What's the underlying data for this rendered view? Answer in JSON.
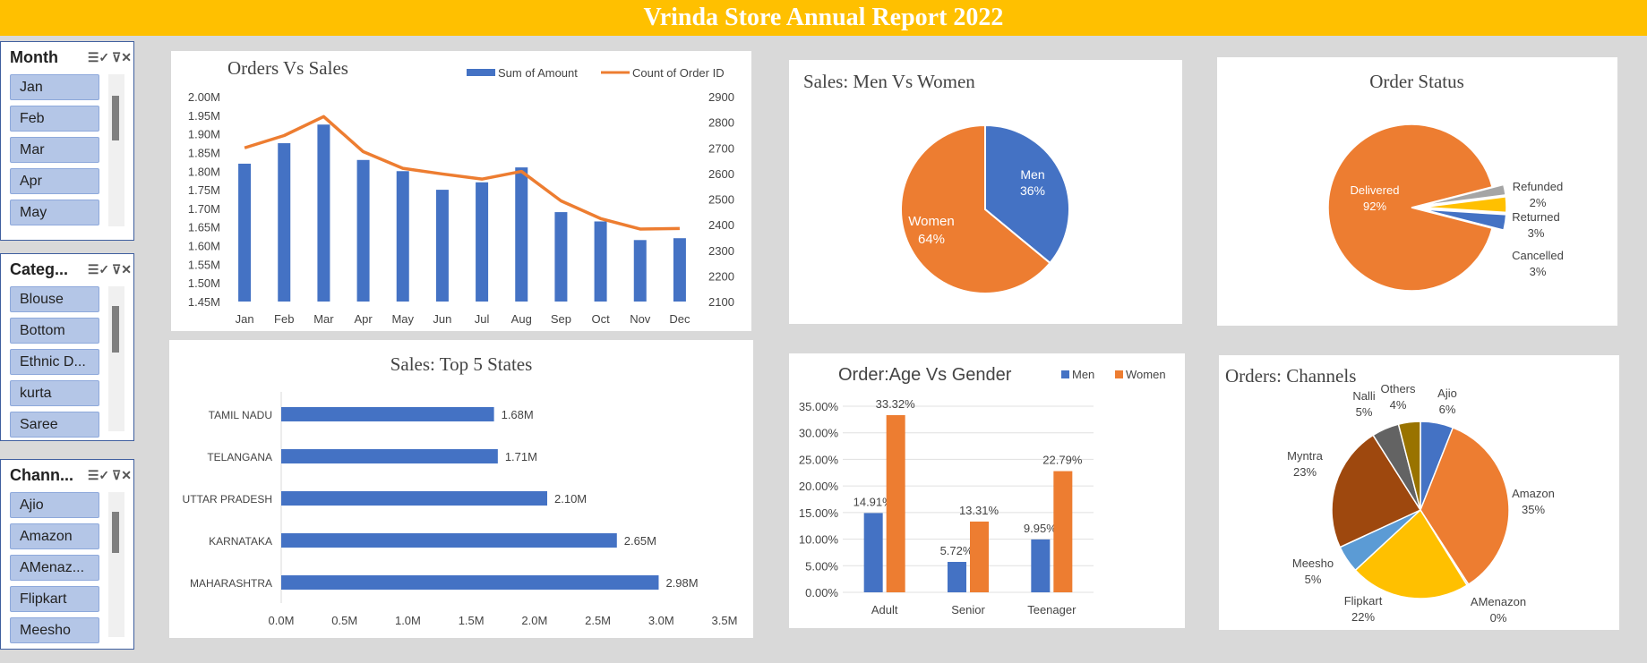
{
  "header": {
    "title": "Vrinda Store Annual Report 2022"
  },
  "colors": {
    "blue": "#4472c4",
    "orange": "#ed7d31",
    "yellow": "#ffc000",
    "gray": "#a5a5a5",
    "brown": "#9e480e",
    "darkgray": "#636363",
    "olive": "#997300",
    "lightblue": "#5b9bd5"
  },
  "slicers": [
    {
      "title": "Month",
      "items": [
        "Jan",
        "Feb",
        "Mar",
        "Apr",
        "May"
      ]
    },
    {
      "title": "Categ...",
      "items": [
        "Blouse",
        "Bottom",
        "Ethnic D...",
        "kurta",
        "Saree"
      ]
    },
    {
      "title": "Chann...",
      "items": [
        "Ajio",
        "Amazon",
        "AMenaz...",
        "Flipkart",
        "Meesho"
      ]
    }
  ],
  "chart_data": [
    {
      "type": "bar",
      "title": "Orders Vs Sales",
      "categories": [
        "Jan",
        "Feb",
        "Mar",
        "Apr",
        "May",
        "Jun",
        "Jul",
        "Aug",
        "Sep",
        "Oct",
        "Nov",
        "Dec"
      ],
      "series": [
        {
          "name": "Sum of Amount",
          "values": [
            1.82,
            1.875,
            1.925,
            1.83,
            1.8,
            1.75,
            1.77,
            1.81,
            1.69,
            1.665,
            1.615,
            1.62
          ]
        },
        {
          "name": "Count of Order ID",
          "values": [
            2700,
            2748,
            2822,
            2685,
            2620,
            2598,
            2578,
            2608,
            2493,
            2424,
            2383,
            2385
          ]
        }
      ],
      "y_ticks_left": [
        "2.00M",
        "1.95M",
        "1.90M",
        "1.85M",
        "1.80M",
        "1.75M",
        "1.70M",
        "1.65M",
        "1.60M",
        "1.55M",
        "1.50M",
        "1.45M"
      ],
      "ylim_left": [
        1.45,
        2.0
      ],
      "y_ticks_right": [
        "2900",
        "2800",
        "2700",
        "2600",
        "2500",
        "2400",
        "2300",
        "2200",
        "2100"
      ],
      "ylim_right": [
        2100,
        2900
      ]
    },
    {
      "type": "pie",
      "title": "Sales: Men Vs Women",
      "labels": [
        "Men",
        "Women"
      ],
      "values": [
        36,
        64
      ],
      "pct_labels": [
        "36%",
        "64%"
      ]
    },
    {
      "type": "pie",
      "title": "Order Status",
      "labels": [
        "Delivered",
        "Refunded",
        "Returned",
        "Cancelled"
      ],
      "values": [
        92,
        2,
        3,
        3
      ],
      "pct_labels": [
        "92%",
        "2%",
        "3%",
        "3%"
      ]
    },
    {
      "type": "bar",
      "title": "Sales: Top 5 States",
      "orientation": "horizontal",
      "categories": [
        "TAMIL NADU",
        "TELANGANA",
        "UTTAR PRADESH",
        "KARNATAKA",
        "MAHARASHTRA"
      ],
      "values": [
        1.68,
        1.71,
        2.1,
        2.65,
        2.98
      ],
      "value_labels": [
        "1.68M",
        "1.71M",
        "2.10M",
        "2.65M",
        "2.98M"
      ],
      "x_ticks": [
        "0.0M",
        "0.5M",
        "1.0M",
        "1.5M",
        "2.0M",
        "2.5M",
        "3.0M",
        "3.5M"
      ],
      "xlim": [
        0,
        3.5
      ]
    },
    {
      "type": "bar",
      "title": "Order:Age Vs Gender",
      "categories": [
        "Adult",
        "Senior",
        "Teenager"
      ],
      "series": [
        {
          "name": "Men",
          "values": [
            14.91,
            5.72,
            9.95
          ],
          "labels": [
            "14.91%",
            "5.72%",
            "9.95%"
          ]
        },
        {
          "name": "Women",
          "values": [
            33.32,
            13.31,
            22.79
          ],
          "labels": [
            "33.32%",
            "13.31%",
            "22.79%"
          ]
        }
      ],
      "y_ticks": [
        "35.00%",
        "30.00%",
        "25.00%",
        "20.00%",
        "15.00%",
        "10.00%",
        "5.00%",
        "0.00%"
      ],
      "ylim": [
        0,
        35
      ]
    },
    {
      "type": "pie",
      "title": "Orders: Channels",
      "labels": [
        "Ajio",
        "Amazon",
        "AMenazon",
        "Flipkart",
        "Meesho",
        "Myntra",
        "Nalli",
        "Others"
      ],
      "values": [
        6,
        35,
        0.3,
        22,
        5,
        23,
        5,
        4
      ],
      "pct_labels": [
        "6%",
        "35%",
        "0%",
        "22%",
        "5%",
        "23%",
        "5%",
        "4%"
      ]
    }
  ]
}
